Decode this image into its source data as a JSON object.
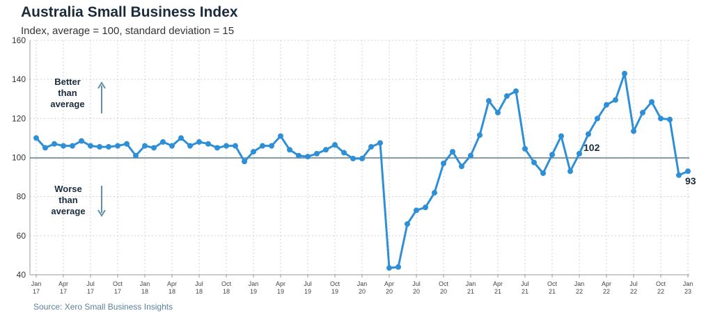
{
  "chart_data": {
    "type": "line",
    "title": "Australia Small Business Index",
    "subtitle": "Index, average = 100, standard deviation = 15",
    "source": "Source: Xero Small Business Insights",
    "ylim": [
      40,
      160
    ],
    "yticks": [
      40,
      60,
      80,
      100,
      120,
      140,
      160
    ],
    "reference_line": 100,
    "x_tick_labels": [
      [
        "Jan",
        "17"
      ],
      [
        "Apr",
        "17"
      ],
      [
        "Jul",
        "17"
      ],
      [
        "Oct",
        "17"
      ],
      [
        "Jan",
        "18"
      ],
      [
        "Apr",
        "18"
      ],
      [
        "Jul",
        "18"
      ],
      [
        "Oct",
        "18"
      ],
      [
        "Jan",
        "19"
      ],
      [
        "Apr",
        "19"
      ],
      [
        "Jul",
        "19"
      ],
      [
        "Oct",
        "19"
      ],
      [
        "Jan",
        "20"
      ],
      [
        "Apr",
        "20"
      ],
      [
        "Jul",
        "20"
      ],
      [
        "Oct",
        "20"
      ],
      [
        "Jan",
        "21"
      ],
      [
        "Apr",
        "21"
      ],
      [
        "Jul",
        "21"
      ],
      [
        "Oct",
        "21"
      ],
      [
        "Jan",
        "22"
      ],
      [
        "Apr",
        "22"
      ],
      [
        "Jul",
        "22"
      ],
      [
        "Oct",
        "22"
      ],
      [
        "Jan",
        "23"
      ]
    ],
    "start_month": "Jan 2017",
    "end_month": "Jan 2023",
    "series": [
      {
        "values": [
          110,
          105,
          107,
          106,
          106,
          108.5,
          106,
          105.5,
          105.5,
          106,
          107,
          101,
          106,
          105,
          108,
          106,
          110,
          106,
          108,
          107,
          105,
          106,
          106,
          98,
          103,
          106,
          106,
          111,
          104,
          101,
          100.5,
          102,
          104,
          106.5,
          102.5,
          99.5,
          99.5,
          105.5,
          107.5,
          43.5,
          44,
          66,
          73,
          74.5,
          82,
          97,
          103,
          95.5,
          101,
          111.5,
          129,
          123,
          131.5,
          134,
          104.5,
          97.5,
          92,
          101.5,
          111,
          93,
          102,
          112,
          120,
          127,
          129.5,
          143,
          113.5,
          123,
          128.5,
          120,
          119.5,
          91,
          93
        ],
        "color": "#2f8fd6"
      }
    ],
    "annotations": {
      "better": [
        "Better",
        "than",
        "average"
      ],
      "worse": [
        "Worse",
        "than",
        "average"
      ],
      "label_102": "102",
      "label_93": "93"
    },
    "grid": true
  }
}
